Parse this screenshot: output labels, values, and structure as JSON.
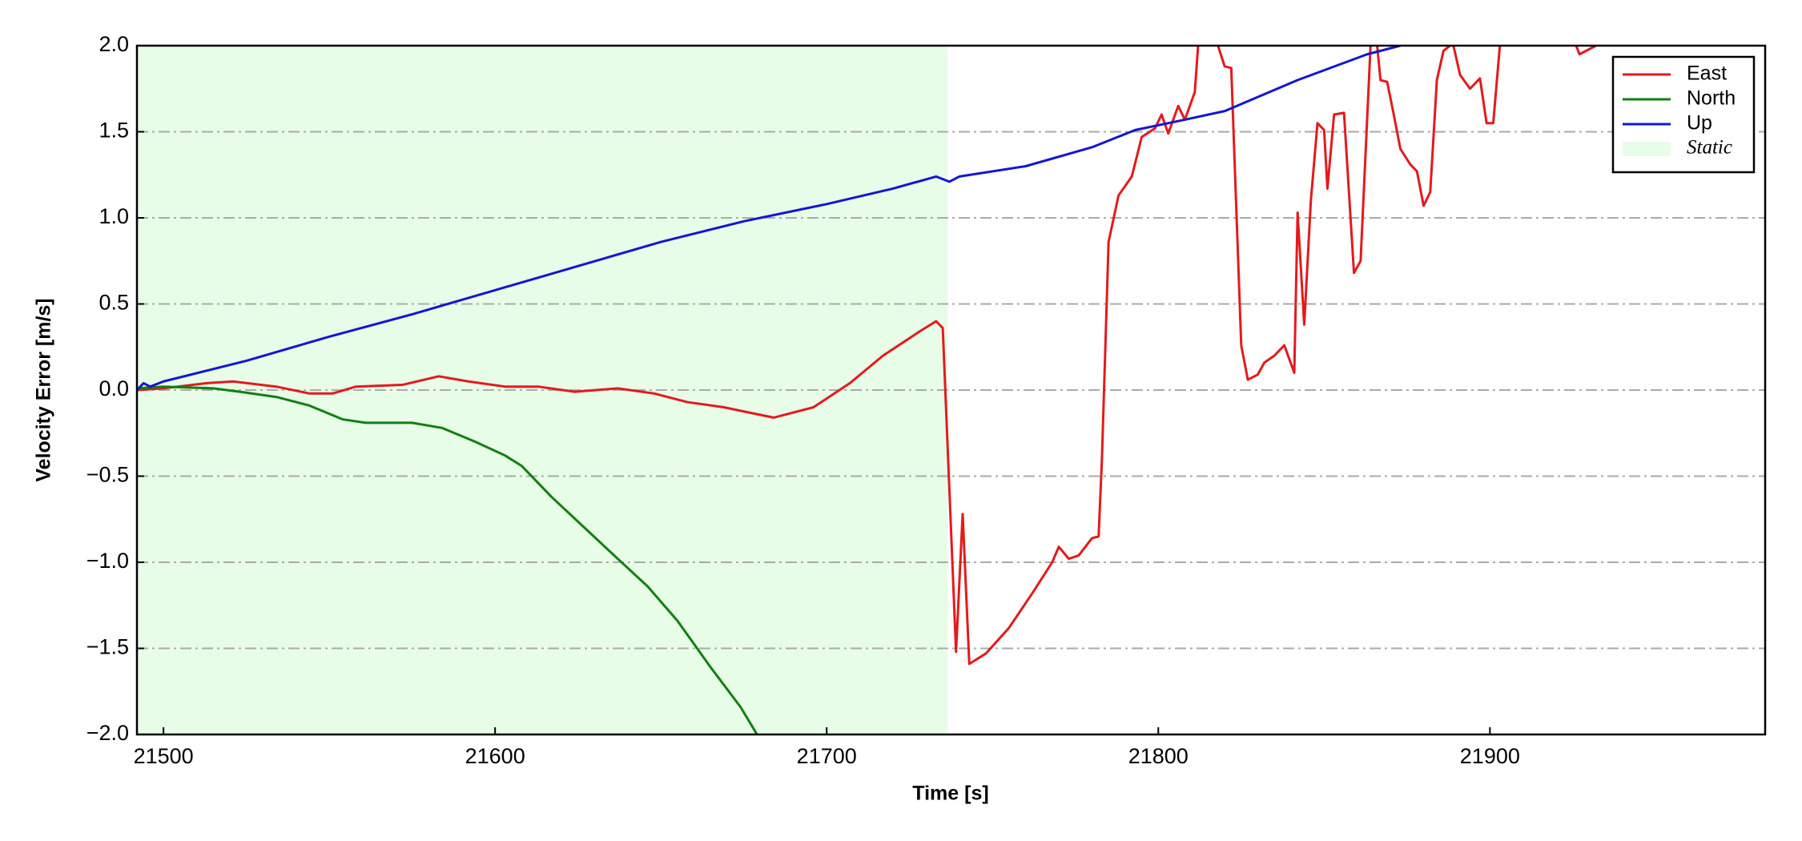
{
  "chart_data": {
    "type": "line",
    "xlabel": "Time [s]",
    "ylabel": "Velocity Error [m/s]",
    "xlim": [
      21492,
      21983
    ],
    "ylim": [
      -2,
      2
    ],
    "xticks": [
      21500,
      21600,
      21700,
      21800,
      21900
    ],
    "yticks": [
      {
        "value": -2,
        "label": "−2.0"
      },
      {
        "value": -1.5,
        "label": "−1.5"
      },
      {
        "value": -1,
        "label": "−1.0"
      },
      {
        "value": -0.5,
        "label": "−0.5"
      },
      {
        "value": 0,
        "label": "0.0"
      },
      0.5,
      {
        "value": 1,
        "label": "1.0"
      },
      1.5,
      {
        "value": 2,
        "label": "2.0"
      }
    ],
    "grid": true,
    "legend": "upper right",
    "static_span": {
      "name": "Static",
      "x": [
        21492,
        21736.5
      ],
      "color": "#e8fde8"
    },
    "series": [
      {
        "name": "East",
        "color": "#e31a1c",
        "x": [
          21492,
          21500,
          21513,
          21521,
          21534,
          21544,
          21551,
          21558,
          21572,
          21583,
          21592,
          21603,
          21613,
          21624,
          21637,
          21648,
          21658,
          21669,
          21679,
          21684,
          21696,
          21707,
          21717,
          21728,
          21733,
          21735,
          21739,
          21741,
          21743,
          21748,
          21755,
          21762,
          21768,
          21770,
          21773,
          21776,
          21780,
          21782,
          21783,
          21785,
          21788,
          21792,
          21795,
          21799,
          21801,
          21803,
          21806,
          21808,
          21811,
          21812,
          21815,
          21818,
          21820,
          21822,
          21823,
          21825,
          21827,
          21830,
          21832,
          21835,
          21838,
          21841,
          21842,
          21844,
          21846,
          21848,
          21850,
          21851,
          21853,
          21856,
          21859,
          21861,
          21864,
          21865,
          21866,
          21867,
          21869,
          21871,
          21873,
          21876,
          21878,
          21880,
          21882,
          21884,
          21886,
          21888,
          21888.5,
          21889,
          21891,
          21894,
          21897,
          21899,
          21901,
          21903,
          21915,
          21926,
          21927,
          21932
        ],
        "values": [
          0.0,
          0.01,
          0.04,
          0.05,
          0.02,
          -0.02,
          -0.02,
          0.02,
          0.03,
          0.08,
          0.05,
          0.02,
          0.02,
          -0.01,
          0.01,
          -0.02,
          -0.07,
          -0.1,
          -0.14,
          -0.16,
          -0.1,
          0.04,
          0.2,
          0.34,
          0.4,
          0.36,
          -1.52,
          -0.72,
          -1.59,
          -1.53,
          -1.38,
          -1.18,
          -1.0,
          -0.91,
          -0.98,
          -0.96,
          -0.86,
          -0.85,
          -0.4,
          0.86,
          1.13,
          1.24,
          1.47,
          1.52,
          1.6,
          1.49,
          1.65,
          1.57,
          1.73,
          2.0,
          null,
          2.0,
          1.88,
          1.87,
          1.33,
          0.26,
          0.06,
          0.09,
          0.16,
          0.2,
          0.26,
          0.1,
          1.03,
          0.38,
          1.1,
          1.55,
          1.51,
          1.17,
          1.6,
          1.61,
          0.68,
          0.75,
          2.0,
          null,
          2.0,
          1.8,
          1.79,
          1.6,
          1.4,
          1.31,
          1.27,
          1.07,
          1.15,
          1.8,
          1.97,
          2.0,
          null,
          2.0,
          1.83,
          1.75,
          1.81,
          1.55,
          1.55,
          2.0,
          null,
          2.0,
          1.95,
          2.0
        ]
      },
      {
        "name": "North",
        "color": "#118011",
        "x": [
          21492,
          21500,
          21515,
          21523,
          21534,
          21544,
          21554,
          21561,
          21575,
          21584,
          21594,
          21603,
          21608,
          21617,
          21627,
          21637,
          21646,
          21655,
          21665,
          21674,
          21679
        ],
        "values": [
          0.01,
          0.02,
          0.01,
          -0.01,
          -0.04,
          -0.09,
          -0.17,
          -0.19,
          -0.19,
          -0.22,
          -0.3,
          -0.38,
          -0.44,
          -0.62,
          -0.8,
          -0.98,
          -1.14,
          -1.34,
          -1.61,
          -1.84,
          -2.0
        ]
      },
      {
        "name": "Up",
        "color": "#1515d0",
        "x": [
          21492,
          21494,
          21496,
          21500,
          21525,
          21550,
          21575,
          21600,
          21625,
          21650,
          21675,
          21700,
          21720,
          21733,
          21737,
          21740,
          21760,
          21780,
          21793,
          21808,
          21820,
          21842,
          21863,
          21873
        ],
        "values": [
          0.0,
          0.04,
          0.02,
          0.05,
          0.17,
          0.31,
          0.44,
          0.58,
          0.72,
          0.86,
          0.98,
          1.08,
          1.17,
          1.24,
          1.21,
          1.24,
          1.3,
          1.41,
          1.51,
          1.57,
          1.62,
          1.8,
          1.95,
          2.0
        ]
      }
    ]
  }
}
